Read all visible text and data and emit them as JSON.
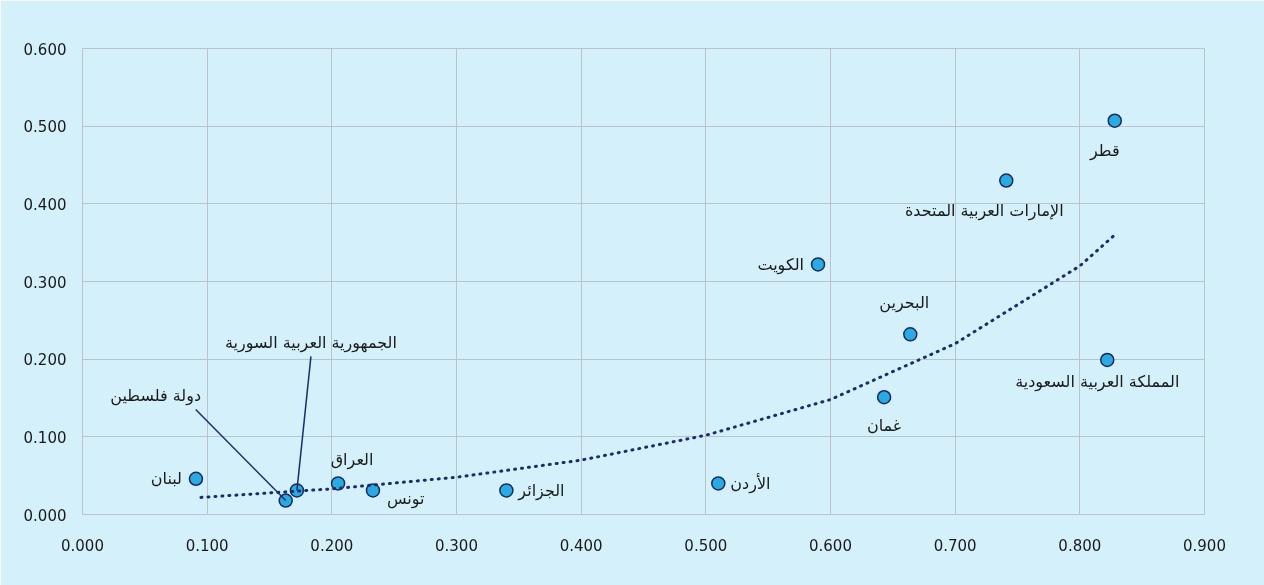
{
  "chart_data": {
    "type": "scatter",
    "xlim": [
      0,
      0.9
    ],
    "ylim": [
      0,
      0.6
    ],
    "xticks": [
      {
        "value": 0,
        "label": "0.000"
      },
      {
        "value": 0.1,
        "label": "0.100"
      },
      {
        "value": 0.2,
        "label": "0.200"
      },
      {
        "value": 0.3,
        "label": "0.300"
      },
      {
        "value": 0.4,
        "label": "0.400"
      },
      {
        "value": 0.5,
        "label": "0.500"
      },
      {
        "value": 0.6,
        "label": "0.600"
      },
      {
        "value": 0.7,
        "label": "0.700"
      },
      {
        "value": 0.8,
        "label": "0.800"
      },
      {
        "value": 0.9,
        "label": "0.900"
      }
    ],
    "yticks": [
      {
        "value": 0,
        "label": "0.000"
      },
      {
        "value": 0.1,
        "label": "0.100"
      },
      {
        "value": 0.2,
        "label": "0.200"
      },
      {
        "value": 0.3,
        "label": "0.300"
      },
      {
        "value": 0.4,
        "label": "0.400"
      },
      {
        "value": 0.5,
        "label": "0.500"
      },
      {
        "value": 0.6,
        "label": "0.600"
      }
    ],
    "grid": true,
    "series": [
      {
        "marker": "circle",
        "color": "#29aae2",
        "x": [
          0.091,
          0.163,
          0.172,
          0.205,
          0.233,
          0.34,
          0.51,
          0.59,
          0.664,
          0.643,
          0.741,
          0.828,
          0.822
        ],
        "values": [
          0.046,
          0.018,
          0.031,
          0.04,
          0.031,
          0.031,
          0.04,
          0.322,
          0.232,
          0.151,
          0.43,
          0.507,
          0.199
        ]
      },
      {
        "type": "line",
        "marker": "none",
        "color": "#1f2a6b",
        "line_style": "dotted",
        "x": [
          0.095,
          0.2,
          0.3,
          0.4,
          0.5,
          0.6,
          0.7,
          0.8,
          0.828
        ],
        "values": [
          0.022,
          0.033,
          0.048,
          0.07,
          0.102,
          0.148,
          0.22,
          0.32,
          0.36
        ]
      }
    ],
    "annotations": [
      {
        "text": "لبنان",
        "x": 0.091,
        "y": 0.046
      },
      {
        "text": "دولة فلسطين",
        "x": 0.163,
        "y": 0.018
      },
      {
        "text": "الجمهورية العربية السورية",
        "x": 0.172,
        "y": 0.031
      },
      {
        "text": "العراق",
        "x": 0.205,
        "y": 0.04
      },
      {
        "text": "تونس",
        "x": 0.233,
        "y": 0.031
      },
      {
        "text": "الجزائر",
        "x": 0.34,
        "y": 0.031
      },
      {
        "text": "الأردن",
        "x": 0.51,
        "y": 0.04
      },
      {
        "text": "الكويت",
        "x": 0.59,
        "y": 0.322
      },
      {
        "text": "البحرين",
        "x": 0.664,
        "y": 0.232
      },
      {
        "text": "غمان",
        "x": 0.643,
        "y": 0.151
      },
      {
        "text": "الإمارات العربية المتحدة",
        "x": 0.741,
        "y": 0.43
      },
      {
        "text": "قطر",
        "x": 0.828,
        "y": 0.507
      },
      {
        "text": "المملكة العربية السعودية",
        "x": 0.822,
        "y": 0.199
      }
    ]
  }
}
